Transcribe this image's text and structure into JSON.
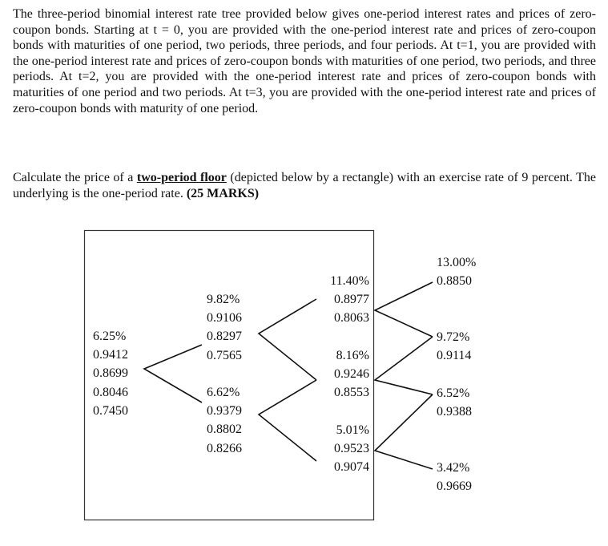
{
  "question": {
    "intro": "The three-period binomial interest rate tree provided below gives one-period interest rates and prices of zero-coupon bonds. Starting at t = 0, you are provided with the one-period interest rate and prices of zero-coupon bonds with maturities of one period, two periods, three periods, and four periods. At t=1, you are provided with the one-period interest rate and prices of zero-coupon bonds with maturities of one period, two periods, and three periods. At t=2, you are provided with the one-period interest rate and prices of zero-coupon bonds with maturities of one period and two periods. At t=3, you are provided with the one-period interest rate and prices of zero-coupon bonds with maturity of one period.",
    "task_before": "Calculate the price of a ",
    "task_emph": "two-period floor",
    "task_after": " (depicted below by a rectangle) with an exercise rate of 9 percent. The underlying is the one-period rate. ",
    "marks": "(25 MARKS)"
  },
  "tree": {
    "t0": [
      [
        "6.25%",
        "0.9412",
        "0.8699",
        "0.8046",
        "0.7450"
      ]
    ],
    "t1": [
      [
        "9.82%",
        "0.9106",
        "0.8297",
        "0.7565"
      ],
      [
        "6.62%",
        "0.9379",
        "0.8802",
        "0.8266"
      ]
    ],
    "t2": [
      [
        "11.40%",
        "0.8977",
        "0.8063"
      ],
      [
        "8.16%",
        "0.9246",
        "0.8553"
      ],
      [
        "5.01%",
        "0.9523",
        "0.9074"
      ]
    ],
    "t3": [
      [
        "13.00%",
        "0.8850"
      ],
      [
        "9.72%",
        "0.9114"
      ],
      [
        "6.52%",
        "0.9388"
      ],
      [
        "3.42%",
        "0.9669"
      ]
    ]
  }
}
